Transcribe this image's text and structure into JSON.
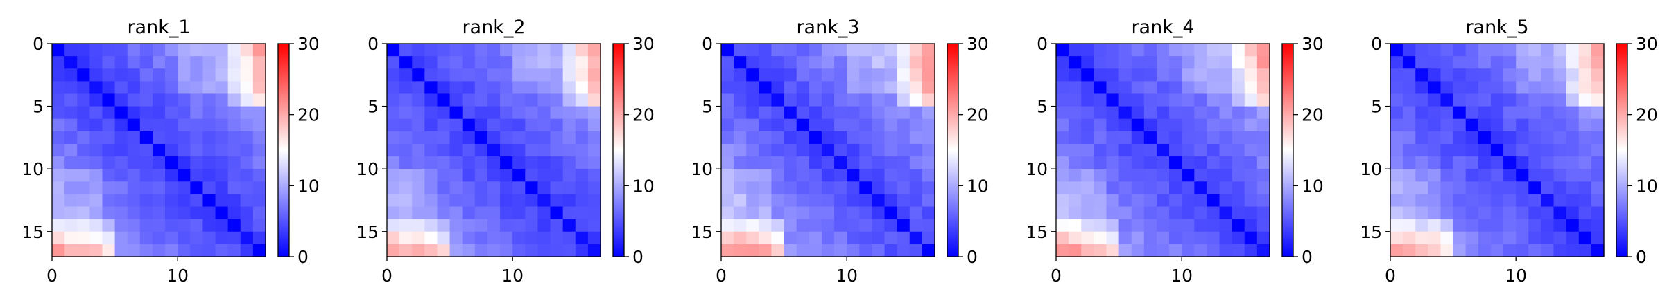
{
  "chart_data": [
    {
      "type": "heatmap",
      "title": "rank_1",
      "xlabel": "",
      "ylabel": "",
      "x_ticks": [
        0,
        10
      ],
      "y_ticks": [
        0,
        5,
        10,
        15
      ],
      "xlim": [
        0,
        17
      ],
      "ylim": [
        17,
        0
      ],
      "colorbar": {
        "cmap": "bwr",
        "vmin": 0,
        "vmax": 30,
        "ticks": [
          0,
          10,
          20,
          30
        ]
      },
      "size": 17,
      "scale": 1.0,
      "matrix": []
    },
    {
      "type": "heatmap",
      "title": "rank_2",
      "xlabel": "",
      "ylabel": "",
      "x_ticks": [
        0,
        10
      ],
      "y_ticks": [
        0,
        5,
        10,
        15
      ],
      "xlim": [
        0,
        17
      ],
      "ylim": [
        17,
        0
      ],
      "colorbar": {
        "cmap": "bwr",
        "vmin": 0,
        "vmax": 30,
        "ticks": [
          0,
          10,
          20,
          30
        ]
      },
      "size": 17,
      "scale": 1.0,
      "matrix": []
    },
    {
      "type": "heatmap",
      "title": "rank_3",
      "xlabel": "",
      "ylabel": "",
      "x_ticks": [
        0,
        10
      ],
      "y_ticks": [
        0,
        5,
        10,
        15
      ],
      "xlim": [
        0,
        17
      ],
      "ylim": [
        17,
        0
      ],
      "colorbar": {
        "cmap": "bwr",
        "vmin": 0,
        "vmax": 30,
        "ticks": [
          0,
          10,
          20,
          30
        ]
      },
      "size": 17,
      "scale": 1.08,
      "matrix": []
    },
    {
      "type": "heatmap",
      "title": "rank_4",
      "xlabel": "",
      "ylabel": "",
      "x_ticks": [
        0,
        10
      ],
      "y_ticks": [
        0,
        5,
        10,
        15
      ],
      "xlim": [
        0,
        17
      ],
      "ylim": [
        17,
        0
      ],
      "colorbar": {
        "cmap": "bwr",
        "vmin": 0,
        "vmax": 30,
        "ticks": [
          0,
          10,
          20,
          30
        ]
      },
      "size": 17,
      "scale": 1.05,
      "matrix": []
    },
    {
      "type": "heatmap",
      "title": "rank_5",
      "xlabel": "",
      "ylabel": "",
      "x_ticks": [
        0,
        10
      ],
      "y_ticks": [
        0,
        5,
        10,
        15
      ],
      "xlim": [
        0,
        17
      ],
      "ylim": [
        17,
        0
      ],
      "colorbar": {
        "cmap": "bwr",
        "vmin": 0,
        "vmax": 30,
        "ticks": [
          0,
          10,
          20,
          30
        ]
      },
      "size": 17,
      "scale": 1.0,
      "matrix": []
    }
  ]
}
